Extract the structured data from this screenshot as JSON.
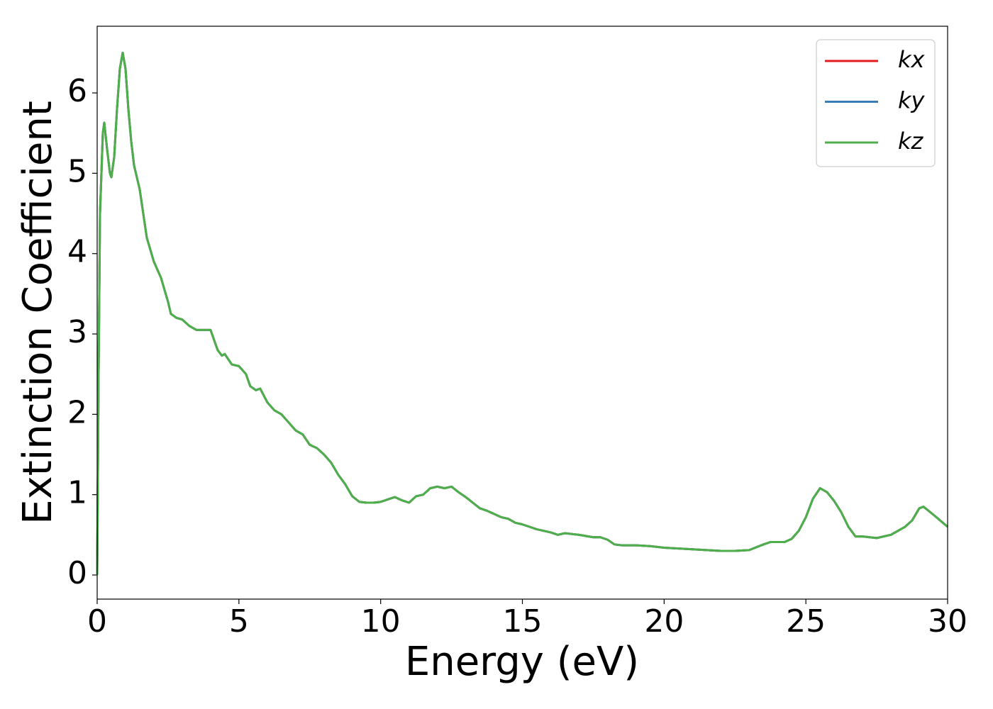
{
  "chart_data": {
    "type": "line",
    "xlabel": "Energy (eV)",
    "ylabel": "Extinction Coefficient",
    "x": [
      0,
      0.05,
      0.1,
      0.2,
      0.25,
      0.35,
      0.45,
      0.5,
      0.6,
      0.7,
      0.8,
      0.9,
      1.0,
      1.1,
      1.2,
      1.3,
      1.5,
      1.75,
      2.0,
      2.25,
      2.5,
      2.6,
      2.8,
      3.0,
      3.25,
      3.5,
      4.0,
      4.25,
      4.4,
      4.5,
      4.75,
      5.0,
      5.25,
      5.4,
      5.6,
      5.75,
      6.0,
      6.25,
      6.5,
      6.75,
      7.0,
      7.25,
      7.5,
      7.75,
      8.0,
      8.25,
      8.5,
      8.75,
      9.0,
      9.25,
      9.5,
      9.75,
      10.0,
      10.25,
      10.5,
      10.75,
      11.0,
      11.25,
      11.5,
      11.75,
      12.0,
      12.25,
      12.5,
      12.75,
      13.0,
      13.25,
      13.5,
      13.75,
      14.0,
      14.25,
      14.5,
      14.75,
      15.0,
      15.25,
      15.5,
      16.0,
      16.25,
      16.5,
      17.0,
      17.5,
      17.75,
      18.0,
      18.25,
      18.5,
      19.0,
      19.5,
      20.0,
      20.5,
      21.0,
      21.5,
      22.0,
      22.5,
      23.0,
      23.5,
      23.75,
      24.25,
      24.5,
      24.75,
      25.0,
      25.25,
      25.5,
      25.75,
      26.0,
      26.25,
      26.5,
      26.75,
      27.0,
      27.5,
      28.0,
      28.25,
      28.5,
      28.75,
      29.0,
      29.15,
      29.5,
      30.0
    ],
    "series": [
      {
        "name": "kx",
        "color": "#e41a1c",
        "values": [
          0,
          2.5,
          4.5,
          5.5,
          5.63,
          5.3,
          5.0,
          4.95,
          5.2,
          5.8,
          6.3,
          6.5,
          6.3,
          5.8,
          5.4,
          5.1,
          4.8,
          4.2,
          3.9,
          3.7,
          3.4,
          3.25,
          3.2,
          3.18,
          3.1,
          3.05,
          3.05,
          2.8,
          2.73,
          2.75,
          2.62,
          2.6,
          2.5,
          2.35,
          2.3,
          2.32,
          2.15,
          2.05,
          2.0,
          1.9,
          1.8,
          1.75,
          1.62,
          1.58,
          1.5,
          1.4,
          1.25,
          1.13,
          0.98,
          0.91,
          0.9,
          0.9,
          0.91,
          0.94,
          0.97,
          0.93,
          0.9,
          0.98,
          1.0,
          1.08,
          1.1,
          1.08,
          1.1,
          1.03,
          0.97,
          0.9,
          0.83,
          0.8,
          0.76,
          0.72,
          0.7,
          0.65,
          0.63,
          0.6,
          0.57,
          0.53,
          0.5,
          0.52,
          0.5,
          0.47,
          0.47,
          0.44,
          0.38,
          0.37,
          0.37,
          0.36,
          0.34,
          0.33,
          0.32,
          0.31,
          0.3,
          0.3,
          0.31,
          0.38,
          0.41,
          0.41,
          0.45,
          0.55,
          0.72,
          0.95,
          1.08,
          1.03,
          0.92,
          0.78,
          0.6,
          0.48,
          0.48,
          0.46,
          0.5,
          0.55,
          0.6,
          0.68,
          0.83,
          0.85,
          0.75,
          0.6
        ]
      },
      {
        "name": "ky",
        "color": "#377eb8",
        "values": [
          0,
          2.5,
          4.5,
          5.5,
          5.63,
          5.3,
          5.0,
          4.95,
          5.2,
          5.8,
          6.3,
          6.5,
          6.3,
          5.8,
          5.4,
          5.1,
          4.8,
          4.2,
          3.9,
          3.7,
          3.4,
          3.25,
          3.2,
          3.18,
          3.1,
          3.05,
          3.05,
          2.8,
          2.73,
          2.75,
          2.62,
          2.6,
          2.5,
          2.35,
          2.3,
          2.32,
          2.15,
          2.05,
          2.0,
          1.9,
          1.8,
          1.75,
          1.62,
          1.58,
          1.5,
          1.4,
          1.25,
          1.13,
          0.98,
          0.91,
          0.9,
          0.9,
          0.91,
          0.94,
          0.97,
          0.93,
          0.9,
          0.98,
          1.0,
          1.08,
          1.1,
          1.08,
          1.1,
          1.03,
          0.97,
          0.9,
          0.83,
          0.8,
          0.76,
          0.72,
          0.7,
          0.65,
          0.63,
          0.6,
          0.57,
          0.53,
          0.5,
          0.52,
          0.5,
          0.47,
          0.47,
          0.44,
          0.38,
          0.37,
          0.37,
          0.36,
          0.34,
          0.33,
          0.32,
          0.31,
          0.3,
          0.3,
          0.31,
          0.38,
          0.41,
          0.41,
          0.45,
          0.55,
          0.72,
          0.95,
          1.08,
          1.03,
          0.92,
          0.78,
          0.6,
          0.48,
          0.48,
          0.46,
          0.5,
          0.55,
          0.6,
          0.68,
          0.83,
          0.85,
          0.75,
          0.6
        ]
      },
      {
        "name": "kz",
        "color": "#4daf4a",
        "values": [
          0,
          2.5,
          4.5,
          5.5,
          5.63,
          5.3,
          5.0,
          4.95,
          5.2,
          5.8,
          6.3,
          6.5,
          6.3,
          5.8,
          5.4,
          5.1,
          4.8,
          4.2,
          3.9,
          3.7,
          3.4,
          3.25,
          3.2,
          3.18,
          3.1,
          3.05,
          3.05,
          2.8,
          2.73,
          2.75,
          2.62,
          2.6,
          2.5,
          2.35,
          2.3,
          2.32,
          2.15,
          2.05,
          2.0,
          1.9,
          1.8,
          1.75,
          1.62,
          1.58,
          1.5,
          1.4,
          1.25,
          1.13,
          0.98,
          0.91,
          0.9,
          0.9,
          0.91,
          0.94,
          0.97,
          0.93,
          0.9,
          0.98,
          1.0,
          1.08,
          1.1,
          1.08,
          1.1,
          1.03,
          0.97,
          0.9,
          0.83,
          0.8,
          0.76,
          0.72,
          0.7,
          0.65,
          0.63,
          0.6,
          0.57,
          0.53,
          0.5,
          0.52,
          0.5,
          0.47,
          0.47,
          0.44,
          0.38,
          0.37,
          0.37,
          0.36,
          0.34,
          0.33,
          0.32,
          0.31,
          0.3,
          0.3,
          0.31,
          0.38,
          0.41,
          0.41,
          0.45,
          0.55,
          0.72,
          0.95,
          1.08,
          1.03,
          0.92,
          0.78,
          0.6,
          0.48,
          0.48,
          0.46,
          0.5,
          0.55,
          0.6,
          0.68,
          0.83,
          0.85,
          0.75,
          0.6
        ]
      }
    ],
    "xlim": [
      0,
      30
    ],
    "xticks": [
      0,
      5,
      10,
      15,
      20,
      25,
      30
    ],
    "ylim": [
      -0.3,
      6.83
    ],
    "yticks": [
      0,
      1,
      2,
      3,
      4,
      5,
      6
    ],
    "grid": false,
    "legend": "upper right"
  }
}
